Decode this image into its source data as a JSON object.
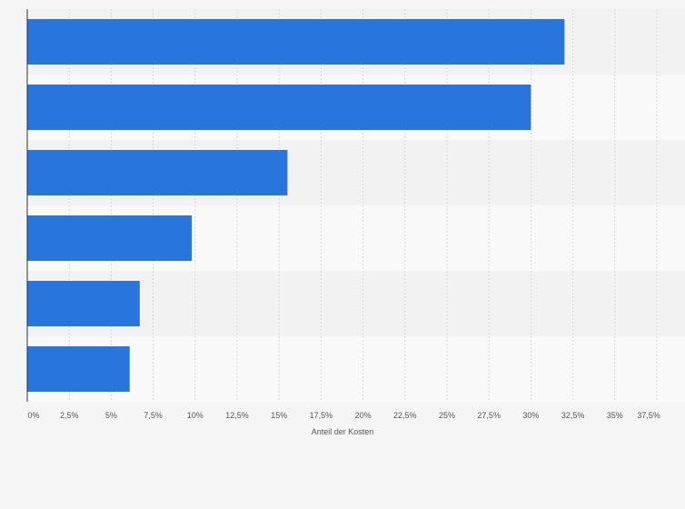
{
  "chart_data": {
    "type": "bar",
    "orientation": "horizontal",
    "categories": [
      "",
      "",
      "",
      "",
      "",
      ""
    ],
    "values": [
      32,
      30,
      15.5,
      9.8,
      6.7,
      6.1
    ],
    "xlim": [
      0,
      37.5
    ],
    "xticks": [
      0,
      2.5,
      5,
      7.5,
      10,
      12.5,
      15,
      17.5,
      20,
      22.5,
      25,
      27.5,
      30,
      32.5,
      35,
      37.5
    ],
    "xtick_labels": [
      "0%",
      "2,5%",
      "5%",
      "7,5%",
      "10%",
      "12,5%",
      "15%",
      "17,5%",
      "20%",
      "22,5%",
      "25%",
      "27,5%",
      "30%",
      "32,5%",
      "35%",
      "37,5%"
    ],
    "xlabel": "Anteil der Kosten",
    "ylabel": "",
    "title": "",
    "grid": "vertical dashed",
    "colors": {
      "bar": "#2876dd",
      "background": "#f5f5f5",
      "band_light": "#f9f9f9",
      "band_dark": "#f2f2f2",
      "grid": "#d8d8d8",
      "axis": "#333333"
    }
  }
}
